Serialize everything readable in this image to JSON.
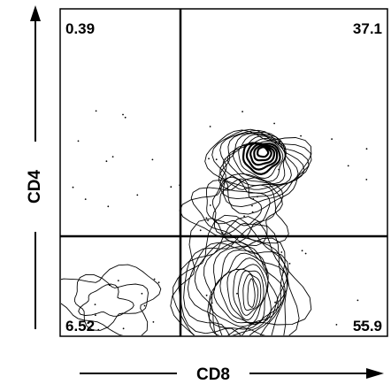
{
  "chart_data": {
    "type": "contour",
    "xlabel": "CD8",
    "ylabel": "CD4",
    "grid": false,
    "quadrant_gates": {
      "upper_left": "0.39",
      "upper_right": "37.1",
      "lower_left": "6.52",
      "lower_right": "55.9"
    },
    "populations": [
      {
        "name_hidden": "",
        "cx": 0.62,
        "cy": 0.74,
        "rings": 14
      },
      {
        "name_hidden": "",
        "cx": 0.59,
        "cy": 0.15,
        "rings": 16
      },
      {
        "name_hidden": "",
        "cx": 0.12,
        "cy": 0.16,
        "rings": 3
      }
    ],
    "colors": {
      "ink": "#000000",
      "background": "#ffffff"
    }
  }
}
